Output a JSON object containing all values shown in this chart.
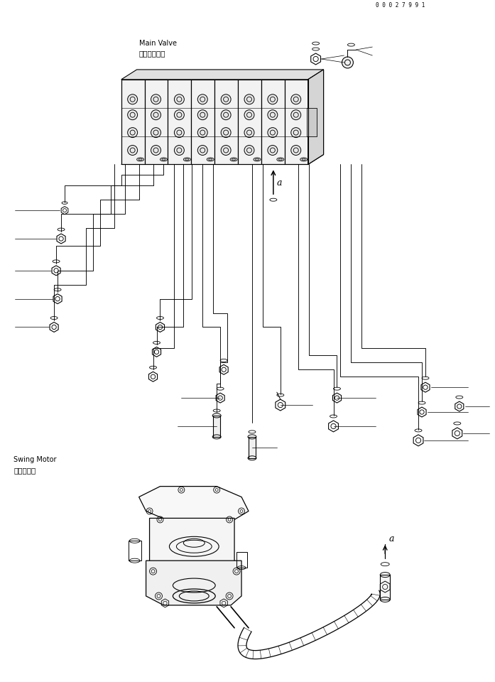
{
  "bg_color": "#ffffff",
  "line_color": "#000000",
  "fig_width": 6.97,
  "fig_height": 9.6,
  "dpi": 100,
  "labels": {
    "swing_motor_jp": "旋回モータ",
    "swing_motor_en": "Swing Motor",
    "main_valve_jp": "メインバルブ",
    "main_valve_en": "Main Valve",
    "part_number": "0 0 0 2 7 9 9 1",
    "arrow_a": "a"
  },
  "font_sizes": {
    "label": 7,
    "part_num": 5.5,
    "component_label": 7.5
  }
}
